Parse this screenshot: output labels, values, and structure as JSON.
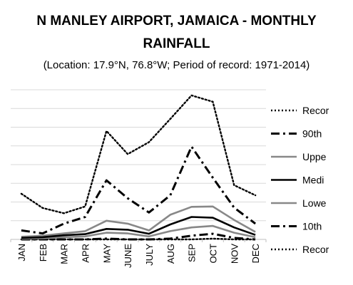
{
  "title_line1": "N MANLEY AIRPORT, JAMAICA - MONTHLY",
  "title_line2": "RAINFALL",
  "subtitle": "(Location: 17.9°N, 76.8°W; Period of record: 1971-2014)",
  "chart_data": {
    "type": "line",
    "x": [
      "JAN",
      "FEB",
      "MAR",
      "APR",
      "MAY",
      "JUNE",
      "JULY",
      "AUG",
      "SEP",
      "OCT",
      "NOV",
      "DEC"
    ],
    "ylim": [
      0,
      400
    ],
    "grid": true,
    "legend_position": "right",
    "series": [
      {
        "name": "Record high",
        "label_visible": "Recor",
        "color": "#000000",
        "style": "dotted",
        "values": [
          122,
          84,
          70,
          88,
          290,
          228,
          260,
          322,
          385,
          368,
          145,
          118
        ]
      },
      {
        "name": "90th",
        "label_visible": "90th",
        "color": "#000000",
        "style": "dashdot",
        "values": [
          24,
          16,
          42,
          60,
          158,
          110,
          72,
          118,
          248,
          165,
          85,
          42
        ]
      },
      {
        "name": "Upper",
        "label_visible": "Uppe",
        "color": "#888888",
        "style": "solid",
        "values": [
          7,
          10,
          16,
          22,
          50,
          42,
          24,
          66,
          87,
          88,
          52,
          20
        ]
      },
      {
        "name": "Median",
        "label_visible": "Medi",
        "color": "#000000",
        "style": "solid",
        "values": [
          4,
          6,
          11,
          14,
          28,
          26,
          15,
          40,
          60,
          58,
          32,
          12
        ]
      },
      {
        "name": "Lower",
        "label_visible": "Lowe",
        "color": "#888888",
        "style": "solid",
        "values": [
          2,
          3,
          6,
          8,
          18,
          16,
          8,
          22,
          32,
          36,
          18,
          6
        ]
      },
      {
        "name": "10th",
        "label_visible": "10th",
        "color": "#000000",
        "style": "dashdot",
        "values": [
          0,
          0,
          0,
          0,
          2,
          0,
          0,
          2,
          10,
          15,
          4,
          0
        ]
      },
      {
        "name": "Record low",
        "label_visible": "Recor",
        "color": "#000000",
        "style": "dotted",
        "values": [
          0,
          0,
          0,
          0,
          0,
          0,
          0,
          0,
          0,
          2,
          0,
          0
        ]
      }
    ]
  }
}
